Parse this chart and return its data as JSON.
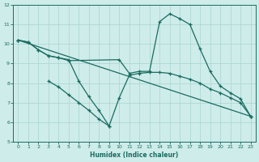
{
  "xlabel": "Humidex (Indice chaleur)",
  "xlim": [
    -0.5,
    23.5
  ],
  "ylim": [
    5,
    12
  ],
  "yticks": [
    5,
    6,
    7,
    8,
    9,
    10,
    11,
    12
  ],
  "xticks": [
    0,
    1,
    2,
    3,
    4,
    5,
    6,
    7,
    8,
    9,
    10,
    11,
    12,
    13,
    14,
    15,
    16,
    17,
    18,
    19,
    20,
    21,
    22,
    23
  ],
  "bg_color": "#ceecea",
  "grid_color": "#a8d5d0",
  "line_color": "#1a6b60",
  "curve1_x": [
    0,
    1,
    2,
    3,
    4,
    5,
    6,
    7,
    8,
    9
  ],
  "curve1_y": [
    10.2,
    10.1,
    9.7,
    9.4,
    9.3,
    9.2,
    8.1,
    7.3,
    6.6,
    5.8
  ],
  "curve2_x": [
    0,
    1,
    2,
    3,
    4,
    5,
    10,
    11,
    12,
    13,
    14,
    15,
    16,
    17,
    18,
    19,
    20,
    21,
    22,
    23
  ],
  "curve2_y": [
    10.2,
    10.1,
    9.7,
    9.4,
    9.3,
    9.15,
    9.2,
    8.5,
    8.6,
    8.6,
    11.15,
    11.55,
    11.3,
    11.0,
    9.75,
    8.6,
    7.85,
    7.5,
    7.2,
    6.3
  ],
  "curve3_x": [
    0,
    23
  ],
  "curve3_y": [
    10.2,
    6.3
  ],
  "curve4_x": [
    3,
    4,
    5,
    6,
    7,
    8,
    9,
    10,
    11,
    12,
    13,
    14,
    15,
    16,
    17,
    18,
    19,
    20,
    21,
    22,
    23
  ],
  "curve4_y": [
    8.1,
    7.8,
    7.4,
    7.0,
    6.6,
    6.15,
    5.8,
    7.25,
    8.4,
    8.5,
    8.55,
    8.55,
    8.5,
    8.35,
    8.2,
    8.0,
    7.7,
    7.5,
    7.25,
    7.0,
    6.3
  ]
}
